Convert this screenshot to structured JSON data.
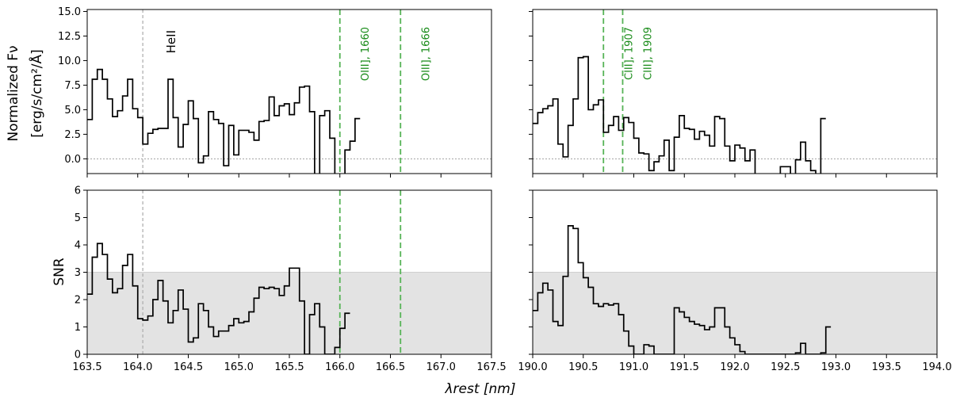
{
  "chart_data": {
    "type": "line",
    "title": "",
    "shared_xlabel": "λrest [nm]",
    "top_ylabel_lines": [
      "Normalized Fν",
      "[erg/s/cm²/Å]"
    ],
    "bottom_ylabel": "SNR",
    "snr_threshold": 3,
    "colors": {
      "step": "#000000",
      "ref_line": "#b0b0b0",
      "green_line": "#56b356",
      "green_text": "#1a8c1a",
      "shade": "#e3e3e3",
      "zero_line": "#888888"
    },
    "panels": [
      {
        "id": "top-left",
        "row": "flux",
        "xlim": [
          163.5,
          167.5
        ],
        "ylim": [
          -1.5,
          15.2
        ],
        "xticks": [
          163.5,
          164.0,
          164.5,
          165.0,
          165.5,
          166.0,
          166.5,
          167.0,
          167.5
        ],
        "xtick_labels_shown": false,
        "yticks": [
          -0.0,
          2.5,
          5.0,
          7.5,
          10.0,
          12.5,
          15.0
        ],
        "ytick_labels": [
          "0.0",
          "2.5",
          "5.0",
          "7.5",
          "10.0",
          "12.5",
          "15.0"
        ],
        "zero_line": true,
        "step_start": 163.5,
        "step_width": 0.05,
        "values": [
          4.0,
          8.1,
          9.1,
          8.1,
          6.1,
          4.3,
          4.9,
          6.4,
          8.1,
          5.1,
          4.2,
          1.5,
          2.6,
          3.0,
          3.1,
          3.1,
          8.1,
          4.2,
          1.2,
          3.5,
          5.9,
          4.1,
          -0.4,
          0.3,
          4.8,
          4.0,
          3.6,
          -0.7,
          3.4,
          0.4,
          2.9,
          2.9,
          2.7,
          1.9,
          3.8,
          3.9,
          6.3,
          4.4,
          5.4,
          5.6,
          4.5,
          5.7,
          7.3,
          7.4,
          4.8,
          -2.0,
          4.4,
          4.9,
          2.1,
          -2.0,
          -2.0,
          0.9,
          1.8,
          4.1
        ],
        "vlines": [
          {
            "x": 164.05,
            "style": "gray",
            "label": "HeII"
          },
          {
            "x": 166.0,
            "style": "green",
            "label": "OIII], 1660"
          },
          {
            "x": 166.6,
            "style": "green",
            "label": "OIII], 1666"
          }
        ]
      },
      {
        "id": "top-right",
        "row": "flux",
        "xlim": [
          190.0,
          194.0
        ],
        "ylim": [
          -1.5,
          15.2
        ],
        "xticks": [
          190.0,
          190.5,
          191.0,
          191.5,
          192.0,
          192.5,
          193.0,
          193.5,
          194.0
        ],
        "xtick_labels_shown": false,
        "yticks": [
          -0.0,
          2.5,
          5.0,
          7.5,
          10.0,
          12.5,
          15.0
        ],
        "ytick_labels": [],
        "zero_line": true,
        "step_start": 190.0,
        "step_width": 0.05,
        "values": [
          3.6,
          4.7,
          5.1,
          5.4,
          6.1,
          1.5,
          0.2,
          3.4,
          6.1,
          10.3,
          10.4,
          5.0,
          5.5,
          6.0,
          2.7,
          3.4,
          4.3,
          2.9,
          4.2,
          3.7,
          2.1,
          0.6,
          0.5,
          -1.2,
          -0.3,
          0.3,
          1.9,
          -1.2,
          2.2,
          4.4,
          3.1,
          3.0,
          2.0,
          2.8,
          2.4,
          1.3,
          4.3,
          4.1,
          1.3,
          -0.2,
          1.4,
          1.1,
          -0.2,
          0.9,
          -2.0,
          -2.0,
          -2.0,
          -2.0,
          -2.0,
          -0.8,
          -0.8,
          -2.0,
          -0.1,
          1.7,
          -0.2,
          -1.2,
          -2.0,
          4.1
        ],
        "vlines": [
          {
            "x": 190.7,
            "style": "green",
            "label": "CIII], 1907"
          },
          {
            "x": 190.89,
            "style": "green",
            "label": "CIII], 1909"
          }
        ]
      },
      {
        "id": "bottom-left",
        "row": "snr",
        "xlim": [
          163.5,
          167.5
        ],
        "ylim": [
          0,
          6
        ],
        "xticks": [
          163.5,
          164.0,
          164.5,
          165.0,
          165.5,
          166.0,
          166.5,
          167.0,
          167.5
        ],
        "xtick_labels": [
          "163.5",
          "164.0",
          "164.5",
          "165.0",
          "165.5",
          "166.0",
          "166.5",
          "167.0",
          "167.5"
        ],
        "xtick_labels_shown": true,
        "yticks": [
          0,
          1,
          2,
          3,
          4,
          5,
          6
        ],
        "ytick_labels": [
          "0",
          "1",
          "2",
          "3",
          "4",
          "5",
          "6"
        ],
        "step_start": 163.5,
        "step_width": 0.05,
        "values": [
          2.2,
          3.55,
          4.05,
          3.65,
          2.75,
          2.25,
          2.4,
          3.25,
          3.65,
          2.5,
          1.3,
          1.25,
          1.4,
          2.0,
          2.7,
          1.95,
          1.15,
          1.6,
          2.35,
          1.65,
          0.45,
          0.6,
          1.85,
          1.6,
          1.0,
          0.65,
          0.85,
          0.85,
          1.05,
          1.3,
          1.15,
          1.2,
          1.55,
          2.05,
          2.45,
          2.4,
          2.45,
          2.4,
          2.15,
          2.5,
          3.15,
          3.15,
          1.95,
          0.0,
          1.45,
          1.85,
          1.0,
          0.0,
          0.0,
          0.25,
          0.95,
          1.5
        ],
        "vlines": [
          {
            "x": 164.05,
            "style": "gray",
            "label": ""
          },
          {
            "x": 166.0,
            "style": "green",
            "label": ""
          },
          {
            "x": 166.6,
            "style": "green",
            "label": ""
          }
        ]
      },
      {
        "id": "bottom-right",
        "row": "snr",
        "xlim": [
          190.0,
          194.0
        ],
        "ylim": [
          0,
          6
        ],
        "xticks": [
          190.0,
          190.5,
          191.0,
          191.5,
          192.0,
          192.5,
          193.0,
          193.5,
          194.0
        ],
        "xtick_labels": [
          "190.0",
          "190.5",
          "191.0",
          "191.5",
          "192.0",
          "192.5",
          "193.0",
          "193.5",
          "194.0"
        ],
        "xtick_labels_shown": true,
        "yticks": [
          0,
          1,
          2,
          3,
          4,
          5,
          6
        ],
        "ytick_labels": [],
        "step_start": 190.0,
        "step_width": 0.05,
        "values": [
          1.6,
          2.25,
          2.6,
          2.35,
          1.2,
          1.05,
          2.85,
          4.7,
          4.6,
          3.35,
          2.8,
          2.45,
          1.85,
          1.75,
          1.85,
          1.8,
          1.85,
          1.45,
          0.85,
          0.3,
          0.0,
          0.0,
          0.35,
          0.3,
          0.0,
          0.0,
          0.0,
          0.0,
          1.7,
          1.55,
          1.35,
          1.2,
          1.1,
          1.05,
          0.9,
          1.0,
          1.7,
          1.7,
          1.0,
          0.6,
          0.35,
          0.1,
          0.0,
          0.0,
          0.0,
          0.0,
          0.0,
          0.0,
          0.0,
          0.0,
          0.0,
          0.0,
          0.05,
          0.4,
          0.0,
          0.0,
          0.0,
          0.05,
          1.0
        ]
      }
    ]
  }
}
